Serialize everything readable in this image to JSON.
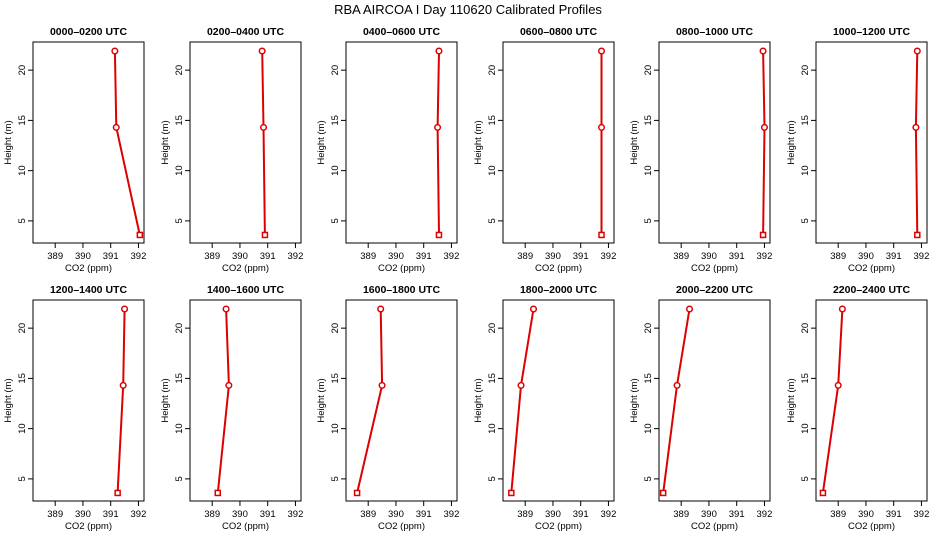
{
  "figure": {
    "title": "RBA AIRCOA I  Day 110620  Calibrated Profiles"
  },
  "colors": {
    "series": "#dd0000",
    "axes": "#000000",
    "background": "#ffffff"
  },
  "chart_data": [
    {
      "type": "line",
      "title": "0000–0200 UTC",
      "xlabel": "CO2 (ppm)",
      "ylabel": "Height (m)",
      "xlim": [
        388.2,
        392.2
      ],
      "ylim": [
        2.8,
        22.8
      ],
      "xticks": [
        389,
        390,
        391,
        392
      ],
      "yticks": [
        5,
        10,
        15,
        20
      ],
      "x": [
        392.05,
        391.2,
        391.15
      ],
      "y": [
        3.6,
        14.3,
        21.9
      ]
    },
    {
      "type": "line",
      "title": "0200–0400 UTC",
      "xlabel": "CO2 (ppm)",
      "ylabel": "Height (m)",
      "xlim": [
        388.2,
        392.2
      ],
      "ylim": [
        2.8,
        22.8
      ],
      "xticks": [
        389,
        390,
        391,
        392
      ],
      "yticks": [
        5,
        10,
        15,
        20
      ],
      "x": [
        390.9,
        390.85,
        390.8
      ],
      "y": [
        3.6,
        14.3,
        21.9
      ]
    },
    {
      "type": "line",
      "title": "0400–0600 UTC",
      "xlabel": "CO2 (ppm)",
      "ylabel": "Height (m)",
      "xlim": [
        388.2,
        392.2
      ],
      "ylim": [
        2.8,
        22.8
      ],
      "xticks": [
        389,
        390,
        391,
        392
      ],
      "yticks": [
        5,
        10,
        15,
        20
      ],
      "x": [
        391.55,
        391.5,
        391.55
      ],
      "y": [
        3.6,
        14.3,
        21.9
      ]
    },
    {
      "type": "line",
      "title": "0600–0800 UTC",
      "xlabel": "CO2 (ppm)",
      "ylabel": "Height (m)",
      "xlim": [
        388.2,
        392.2
      ],
      "ylim": [
        2.8,
        22.8
      ],
      "xticks": [
        389,
        390,
        391,
        392
      ],
      "yticks": [
        5,
        10,
        15,
        20
      ],
      "x": [
        391.75,
        391.75,
        391.75
      ],
      "y": [
        3.6,
        14.3,
        21.9
      ]
    },
    {
      "type": "line",
      "title": "0800–1000 UTC",
      "xlabel": "CO2 (ppm)",
      "ylabel": "Height (m)",
      "xlim": [
        388.2,
        392.2
      ],
      "ylim": [
        2.8,
        22.8
      ],
      "xticks": [
        389,
        390,
        391,
        392
      ],
      "yticks": [
        5,
        10,
        15,
        20
      ],
      "x": [
        391.95,
        392.0,
        391.95
      ],
      "y": [
        3.6,
        14.3,
        21.9
      ]
    },
    {
      "type": "line",
      "title": "1000–1200 UTC",
      "xlabel": "CO2 (ppm)",
      "ylabel": "Height (m)",
      "xlim": [
        388.2,
        392.2
      ],
      "ylim": [
        2.8,
        22.8
      ],
      "xticks": [
        389,
        390,
        391,
        392
      ],
      "yticks": [
        5,
        10,
        15,
        20
      ],
      "x": [
        391.85,
        391.8,
        391.85
      ],
      "y": [
        3.6,
        14.3,
        21.9
      ]
    },
    {
      "type": "line",
      "title": "1200–1400 UTC",
      "xlabel": "CO2 (ppm)",
      "ylabel": "Height (m)",
      "xlim": [
        388.2,
        392.2
      ],
      "ylim": [
        2.8,
        22.8
      ],
      "xticks": [
        389,
        390,
        391,
        392
      ],
      "yticks": [
        5,
        10,
        15,
        20
      ],
      "x": [
        391.25,
        391.45,
        391.5
      ],
      "y": [
        3.6,
        14.3,
        21.9
      ]
    },
    {
      "type": "line",
      "title": "1400–1600 UTC",
      "xlabel": "CO2 (ppm)",
      "ylabel": "Height (m)",
      "xlim": [
        388.2,
        392.2
      ],
      "ylim": [
        2.8,
        22.8
      ],
      "xticks": [
        389,
        390,
        391,
        392
      ],
      "yticks": [
        5,
        10,
        15,
        20
      ],
      "x": [
        389.2,
        389.6,
        389.5
      ],
      "y": [
        3.6,
        14.3,
        21.9
      ]
    },
    {
      "type": "line",
      "title": "1600–1800 UTC",
      "xlabel": "CO2 (ppm)",
      "ylabel": "Height (m)",
      "xlim": [
        388.2,
        392.2
      ],
      "ylim": [
        2.8,
        22.8
      ],
      "xticks": [
        389,
        390,
        391,
        392
      ],
      "yticks": [
        5,
        10,
        15,
        20
      ],
      "x": [
        388.6,
        389.5,
        389.45
      ],
      "y": [
        3.6,
        14.3,
        21.9
      ]
    },
    {
      "type": "line",
      "title": "1800–2000 UTC",
      "xlabel": "CO2 (ppm)",
      "ylabel": "Height (m)",
      "xlim": [
        388.2,
        392.2
      ],
      "ylim": [
        2.8,
        22.8
      ],
      "xticks": [
        389,
        390,
        391,
        392
      ],
      "yticks": [
        5,
        10,
        15,
        20
      ],
      "x": [
        388.5,
        388.85,
        389.3
      ],
      "y": [
        3.6,
        14.3,
        21.9
      ]
    },
    {
      "type": "line",
      "title": "2000–2200 UTC",
      "xlabel": "CO2 (ppm)",
      "ylabel": "Height (m)",
      "xlim": [
        388.2,
        392.2
      ],
      "ylim": [
        2.8,
        22.8
      ],
      "xticks": [
        389,
        390,
        391,
        392
      ],
      "yticks": [
        5,
        10,
        15,
        20
      ],
      "x": [
        388.35,
        388.85,
        389.3
      ],
      "y": [
        3.6,
        14.3,
        21.9
      ]
    },
    {
      "type": "line",
      "title": "2200–2400 UTC",
      "xlabel": "CO2 (ppm)",
      "ylabel": "Height (m)",
      "xlim": [
        388.2,
        392.2
      ],
      "ylim": [
        2.8,
        22.8
      ],
      "xticks": [
        389,
        390,
        391,
        392
      ],
      "yticks": [
        5,
        10,
        15,
        20
      ],
      "x": [
        388.45,
        389.0,
        389.15
      ],
      "y": [
        3.6,
        14.3,
        21.9
      ]
    }
  ]
}
